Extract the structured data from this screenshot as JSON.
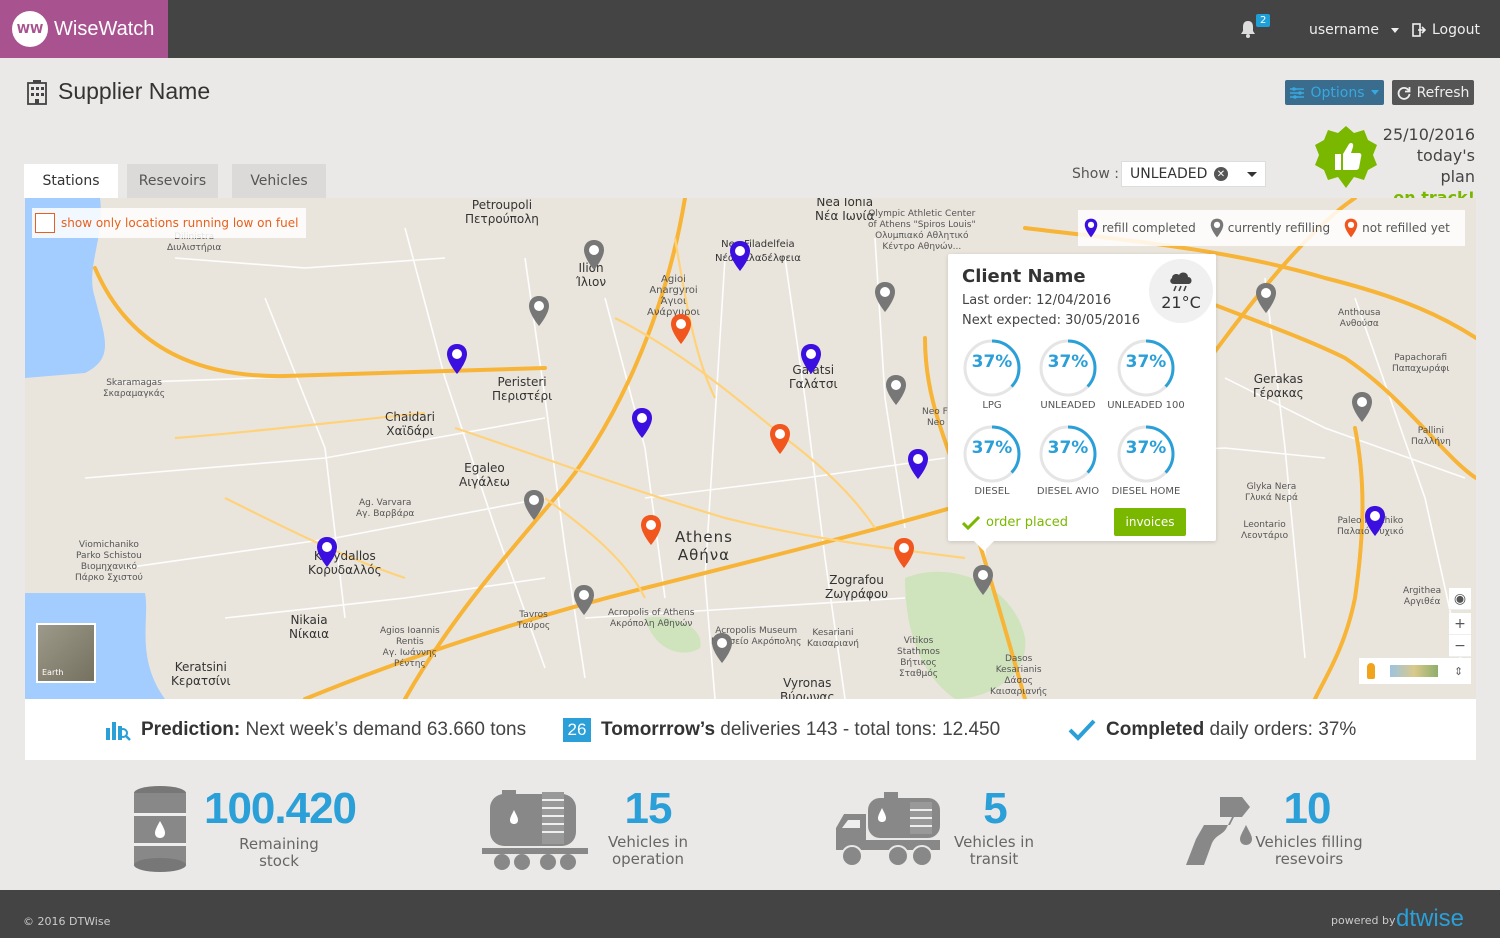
{
  "app": {
    "brand": "WiseWatch",
    "brand_initials": "WW",
    "notification_count": "2",
    "username": "username",
    "logout_label": "Logout"
  },
  "header": {
    "title": "Supplier Name",
    "options_label": "Options",
    "refresh_label": "Refresh",
    "plan_date": "25/10/2016",
    "plan_caption": "today's plan",
    "plan_status": "on track!"
  },
  "tabs": [
    {
      "label": "Stations",
      "active": true
    },
    {
      "label": "Resevoirs",
      "active": false
    },
    {
      "label": "Vehicles",
      "active": false
    }
  ],
  "filter": {
    "show_label": "Show :",
    "selected": "UNLEADED"
  },
  "map": {
    "low_fuel_toggle": "show only locations running low on fuel",
    "legend": [
      {
        "label": "refill completed",
        "color": "#3b0fe0"
      },
      {
        "label": "currently refilling",
        "color": "#777777"
      },
      {
        "label": "not refilled yet",
        "color": "#f0561d"
      }
    ],
    "earth_label": "Earth",
    "places": [
      "Petroupoli\nΠετρούπολη",
      "Nea Ionia\nΝέα Ιωνία",
      "Ilion\nΊλιον",
      "Nea Filadelfeia\nΝέα Φιλαδέλφεια",
      "Agioi\nAnargyroi\nΆγιοι\nΑνάργυροι",
      "Peristeri\nΠεριστέρι",
      "Galatsi\nΓαλάτσι",
      "Chaidari\nΧαϊδάρι",
      "Egaleo\nΑιγάλεω",
      "Ag. Varvara\nΑγ. Βαρβάρα",
      "Korydallos\nΚορυδαλλός",
      "Nikaia\nΝίκαια",
      "Keratsini\nΚερατσίνι",
      "Agios Ioannis\nRentis\nΑγ. Ιωάννης\nΡέντης",
      "Tavros\nΤαύρος",
      "Zografou\nΖωγράφου",
      "Kesariani\nΚαισαριανή",
      "Vyronas\nΒύρωνας",
      "Gerakas\nΓέρακας",
      "Pallini\nΠαλλήνη",
      "Glyka Nera\nΓλυκά Νερά",
      "Leontario\nΛεοντάριο",
      "Paleo Psychiko\nΠαλαιό Ψυχικό",
      "Argithea\nΑργιθέα",
      "Anthousa\nΑνθούσα",
      "Papachorafi\nΠαπαχωράφι",
      "Skaramagas\nΣκαραμαγκάς",
      "Viomichaniko\nParko Schistou\nΒιομηχανικό\nΠάρκο Σχιστού",
      "Dasos\nKesarianis\nΔάσος\nΚαισαριανής",
      "Vitikos\nStathmos\nΒήτικος\nΣταθμός",
      "Acropolis of Athens\nΑκρόπολη Αθηνών",
      "Acropolis Museum\nΜουσείο Ακρόπολης",
      "Olympic Athletic Center\nof Athens \"Spiros Louis\"\nΟλυμπιακό Αθλητικό\nΚέντρο Αθηνών...",
      "Dilinistra\nΔιυλιστήρια",
      "Neo Fi\nNeo"
    ],
    "city": "Athens\nΑθήνα",
    "popup": {
      "client_name": "Client Name",
      "last_order": "Last order: 12/04/2016",
      "next_expected": "Next expected: 30/05/2016",
      "temperature": "21°C",
      "weather_icon": "rain-cloud-icon",
      "gauges": [
        {
          "pct": "37%",
          "name": "LPG",
          "value": 0.37
        },
        {
          "pct": "37%",
          "name": "UNLEADED",
          "value": 0.37
        },
        {
          "pct": "37%",
          "name": "UNLEADED 100",
          "value": 0.37
        },
        {
          "pct": "37%",
          "name": "DIESEL",
          "value": 0.37
        },
        {
          "pct": "37%",
          "name": "DIESEL AVIO",
          "value": 0.37
        },
        {
          "pct": "37%",
          "name": "DIESEL HOME",
          "value": 0.37
        }
      ],
      "order_status": "order placed",
      "invoices_label": "invoices"
    }
  },
  "stats": {
    "prediction_bold": "Prediction:",
    "prediction_text": "Next week’s demand 63.660 tons",
    "calendar_day": "26",
    "deliveries_bold": "Tomorrrow’s",
    "deliveries_text": "deliveries 143 - total tons: 12.450",
    "completed_bold": "Completed",
    "completed_text": "daily orders: 37%"
  },
  "kpis": [
    {
      "value": "100.420",
      "label": "Remaining\nstock",
      "icon": "oil-barrel-icon"
    },
    {
      "value": "15",
      "label": "Vehicles in\noperation",
      "icon": "tanker-wagon-icon"
    },
    {
      "value": "5",
      "label": "Vehicles in\ntransit",
      "icon": "tanker-truck-icon"
    },
    {
      "value": "10",
      "label": "Vehicles filling\nresevoirs",
      "icon": "fuel-nozzle-icon"
    }
  ],
  "footer": {
    "copyright": "© 2016 DTWise",
    "powered_by": "powered by",
    "powered_brand": "dtwise"
  },
  "colors": {
    "accent": "#2a9fd8",
    "brand": "#a8528f",
    "success": "#7ab800",
    "pin_blue": "#3b0fe0",
    "pin_gray": "#777777",
    "pin_orange": "#f0561d"
  }
}
